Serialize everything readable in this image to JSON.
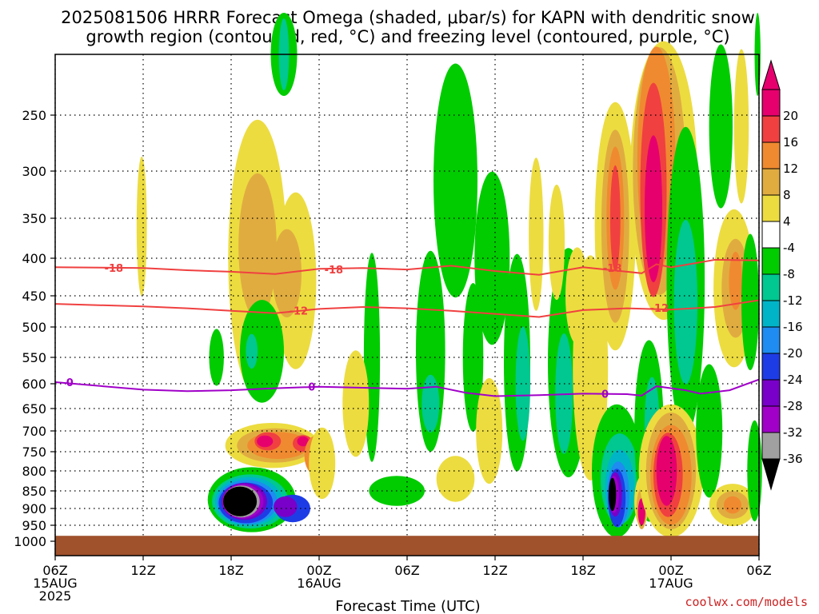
{
  "title": {
    "line1": "2025081506 HRRR Forecast Omega (shaded, μbar/s) for KAPN with dendritic snow",
    "line2": "growth region (contoured, red, °C) and freezing level (contoured, purple, °C)"
  },
  "credit": "coolwx.com/models",
  "chart_data": {
    "type": "heatmap",
    "xlabel": "Forecast Time (UTC)",
    "ylabel": "",
    "x_range_hours": [
      0,
      48
    ],
    "y_range_hpa": [
      200,
      1000
    ],
    "x_ticks": [
      {
        "hour": 0,
        "lines": [
          "06Z",
          "15AUG",
          "2025"
        ]
      },
      {
        "hour": 6,
        "lines": [
          "12Z"
        ]
      },
      {
        "hour": 12,
        "lines": [
          "18Z"
        ]
      },
      {
        "hour": 18,
        "lines": [
          "00Z",
          "16AUG"
        ]
      },
      {
        "hour": 24,
        "lines": [
          "06Z"
        ]
      },
      {
        "hour": 30,
        "lines": [
          "12Z"
        ]
      },
      {
        "hour": 36,
        "lines": [
          "18Z"
        ]
      },
      {
        "hour": 42,
        "lines": [
          "00Z",
          "17AUG"
        ]
      },
      {
        "hour": 48,
        "lines": [
          "06Z"
        ]
      }
    ],
    "y_ticks": [
      250,
      300,
      350,
      400,
      450,
      500,
      550,
      600,
      650,
      700,
      750,
      800,
      850,
      900,
      950,
      1000
    ],
    "colorbar": {
      "levels": [
        {
          "label": "20",
          "color": "#e6006e"
        },
        {
          "label": "16",
          "color": "#f04040"
        },
        {
          "label": "12",
          "color": "#f08a30"
        },
        {
          "label": "8",
          "color": "#e0ac40"
        },
        {
          "label": "4",
          "color": "#ecdc40"
        },
        {
          "label": "-4",
          "color": "#ffffff"
        },
        {
          "label": "-8",
          "color": "#00cc00"
        },
        {
          "label": "-12",
          "color": "#00c890"
        },
        {
          "label": "-16",
          "color": "#00b4c8"
        },
        {
          "label": "-20",
          "color": "#1e8cf0"
        },
        {
          "label": "-24",
          "color": "#1e3ce6"
        },
        {
          "label": "-28",
          "color": "#7800c8"
        },
        {
          "label": "-32",
          "color": "#a000c8"
        },
        {
          "label": "-36",
          "color": "#a0a0a0"
        }
      ],
      "top_color": "#e6006e",
      "bottom_color": "#000000"
    },
    "contours": [
      {
        "level": "-18",
        "color": "#f04040",
        "points": [
          [
            0,
            412
          ],
          [
            6,
            413
          ],
          [
            9,
            416
          ],
          [
            12,
            418
          ],
          [
            15,
            421
          ],
          [
            18,
            414
          ],
          [
            21,
            413
          ],
          [
            24,
            415
          ],
          [
            27,
            410
          ],
          [
            30,
            417
          ],
          [
            33,
            422
          ],
          [
            36,
            412
          ],
          [
            39,
            418
          ],
          [
            40,
            420
          ],
          [
            41,
            408
          ],
          [
            42,
            412
          ],
          [
            45,
            402
          ],
          [
            48,
            403
          ]
        ]
      },
      {
        "level": "-12",
        "color": "#f04040",
        "points": [
          [
            0,
            463
          ],
          [
            6,
            467
          ],
          [
            9,
            470
          ],
          [
            12,
            474
          ],
          [
            15,
            478
          ],
          [
            18,
            471
          ],
          [
            21,
            468
          ],
          [
            24,
            470
          ],
          [
            27,
            474
          ],
          [
            30,
            479
          ],
          [
            33,
            484
          ],
          [
            36,
            473
          ],
          [
            39,
            470
          ],
          [
            42,
            472
          ],
          [
            45,
            468
          ],
          [
            48,
            457
          ]
        ]
      },
      {
        "level": "0",
        "color": "#a000c8",
        "points": [
          [
            0,
            597
          ],
          [
            6,
            612
          ],
          [
            9,
            615
          ],
          [
            12,
            613
          ],
          [
            15,
            609
          ],
          [
            18,
            606
          ],
          [
            21,
            608
          ],
          [
            24,
            610
          ],
          [
            26,
            606
          ],
          [
            28,
            618
          ],
          [
            30,
            625
          ],
          [
            33,
            623
          ],
          [
            36,
            620
          ],
          [
            39,
            621
          ],
          [
            40,
            624
          ],
          [
            41,
            605
          ],
          [
            43,
            613
          ],
          [
            44,
            620
          ],
          [
            46,
            613
          ],
          [
            48,
            592
          ]
        ]
      }
    ],
    "contour_labels": [
      {
        "text": "-18",
        "hour": 4,
        "hpa": 413,
        "color": "#f04040"
      },
      {
        "text": "-18",
        "hour": 19,
        "hpa": 415,
        "color": "#f04040"
      },
      {
        "text": "-18",
        "hour": 38,
        "hpa": 413,
        "color": "#f04040"
      },
      {
        "text": "-12",
        "hour": 16.6,
        "hpa": 474,
        "color": "#f04040"
      },
      {
        "text": "-12",
        "hour": 41.2,
        "hpa": 469,
        "color": "#f04040"
      },
      {
        "text": "0",
        "hour": 1,
        "hpa": 597,
        "color": "#a000c8"
      },
      {
        "text": "0",
        "hour": 17.5,
        "hpa": 606,
        "color": "#a000c8"
      },
      {
        "text": "0",
        "hour": 37.5,
        "hpa": 620,
        "color": "#a000c8"
      }
    ],
    "surface_hpa": 983
  }
}
